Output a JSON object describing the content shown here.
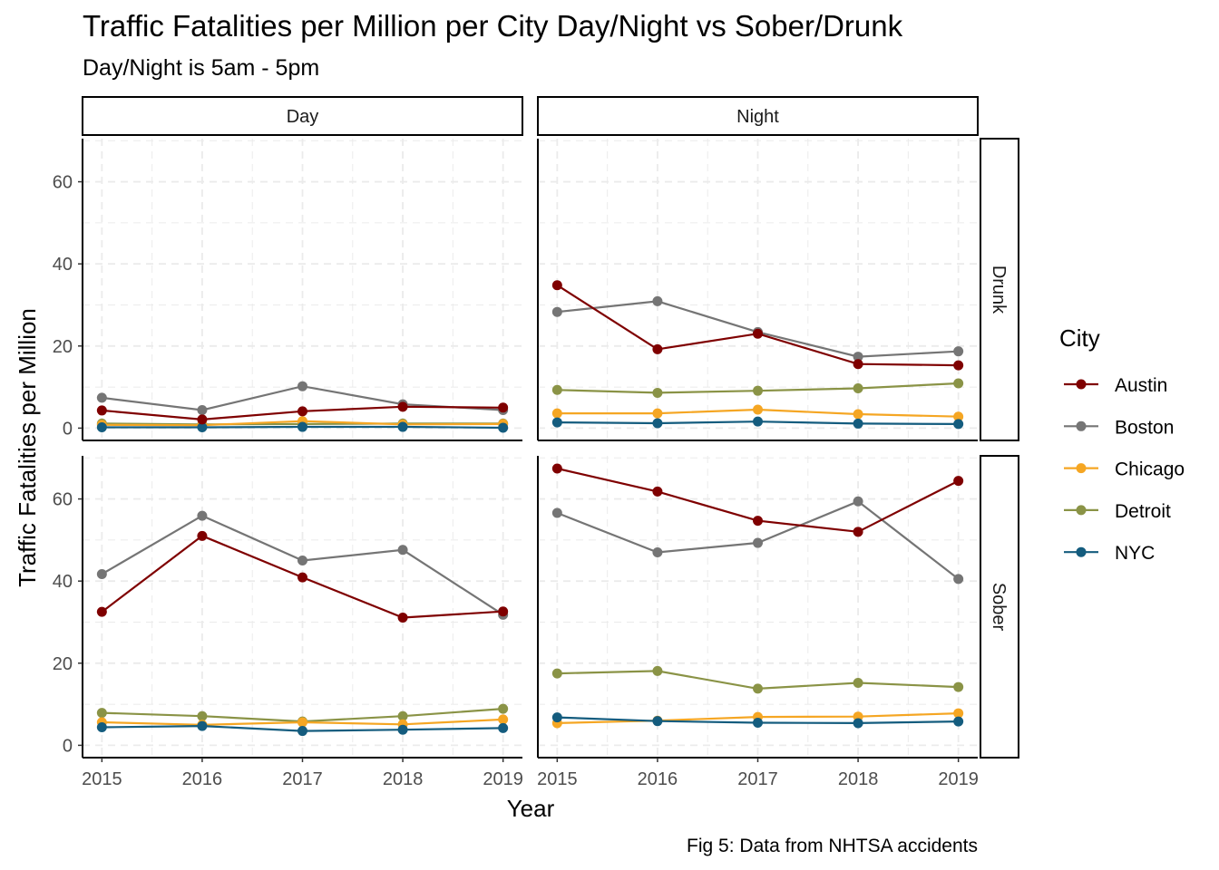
{
  "chart_data": {
    "type": "line",
    "title": "Traffic Fatalities per Million per City Day/Night vs Sober/Drunk",
    "subtitle": "Day/Night is 5am - 5pm",
    "xlabel": "Year",
    "ylabel": "Traffic Fatalities per Million",
    "caption": "Fig 5: Data from NHTSA accidents",
    "x": [
      2015,
      2016,
      2017,
      2018,
      2019
    ],
    "x_tick_labels": [
      "2015",
      "2016",
      "2017",
      "2018",
      "2019"
    ],
    "ylim": [
      -3,
      70.5
    ],
    "y_ticks": [
      0,
      20,
      40,
      60
    ],
    "y_tick_labels": [
      "0",
      "20",
      "40",
      "60"
    ],
    "grid": true,
    "column_facets": [
      "Day",
      "Night"
    ],
    "row_facets": [
      "Drunk",
      "Sober"
    ],
    "legend": {
      "title": "City",
      "placement": "right",
      "entries": [
        {
          "name": "Austin",
          "color": "#7f0000"
        },
        {
          "name": "Boston",
          "color": "#757575"
        },
        {
          "name": "Chicago",
          "color": "#f5a623"
        },
        {
          "name": "Detroit",
          "color": "#8a9346"
        },
        {
          "name": "NYC",
          "color": "#145c7e"
        }
      ]
    },
    "panels": [
      {
        "col": "Day",
        "row": "Drunk",
        "series": [
          {
            "name": "Austin",
            "values": [
              4.3,
              2.1,
              4.1,
              5.2,
              5.0
            ]
          },
          {
            "name": "Boston",
            "values": [
              7.4,
              4.4,
              10.2,
              5.8,
              4.4
            ]
          },
          {
            "name": "Chicago",
            "values": [
              0.8,
              0.7,
              1.7,
              0.9,
              1.0
            ]
          },
          {
            "name": "Detroit",
            "values": [
              1.1,
              0.9,
              1.0,
              1.1,
              1.1
            ]
          },
          {
            "name": "NYC",
            "values": [
              0.2,
              0.2,
              0.3,
              0.3,
              0.1
            ]
          }
        ]
      },
      {
        "col": "Night",
        "row": "Drunk",
        "series": [
          {
            "name": "Austin",
            "values": [
              34.8,
              19.2,
              23.0,
              15.6,
              15.3
            ]
          },
          {
            "name": "Boston",
            "values": [
              28.3,
              30.9,
              23.4,
              17.4,
              18.7
            ]
          },
          {
            "name": "Chicago",
            "values": [
              3.6,
              3.6,
              4.5,
              3.4,
              2.8
            ]
          },
          {
            "name": "Detroit",
            "values": [
              9.3,
              8.6,
              9.1,
              9.7,
              10.9
            ]
          },
          {
            "name": "NYC",
            "values": [
              1.4,
              1.2,
              1.6,
              1.1,
              1.0
            ]
          }
        ]
      },
      {
        "col": "Day",
        "row": "Sober",
        "series": [
          {
            "name": "Austin",
            "values": [
              32.5,
              51.0,
              40.9,
              31.1,
              32.6
            ]
          },
          {
            "name": "Boston",
            "values": [
              41.7,
              55.9,
              45.0,
              47.6,
              31.8
            ]
          },
          {
            "name": "Chicago",
            "values": [
              5.6,
              5.0,
              5.6,
              5.1,
              6.3
            ]
          },
          {
            "name": "Detroit",
            "values": [
              7.9,
              7.1,
              5.8,
              7.1,
              8.9
            ]
          },
          {
            "name": "NYC",
            "values": [
              4.4,
              4.7,
              3.5,
              3.8,
              4.2
            ]
          }
        ]
      },
      {
        "col": "Night",
        "row": "Sober",
        "series": [
          {
            "name": "Austin",
            "values": [
              67.4,
              61.8,
              54.7,
              52.0,
              64.4
            ]
          },
          {
            "name": "Boston",
            "values": [
              56.6,
              47.0,
              49.3,
              59.4,
              40.5
            ]
          },
          {
            "name": "Chicago",
            "values": [
              5.4,
              6.0,
              6.9,
              7.0,
              7.8
            ]
          },
          {
            "name": "Detroit",
            "values": [
              17.5,
              18.1,
              13.8,
              15.2,
              14.2
            ]
          },
          {
            "name": "NYC",
            "values": [
              6.8,
              5.9,
              5.5,
              5.4,
              5.8
            ]
          }
        ]
      }
    ]
  }
}
